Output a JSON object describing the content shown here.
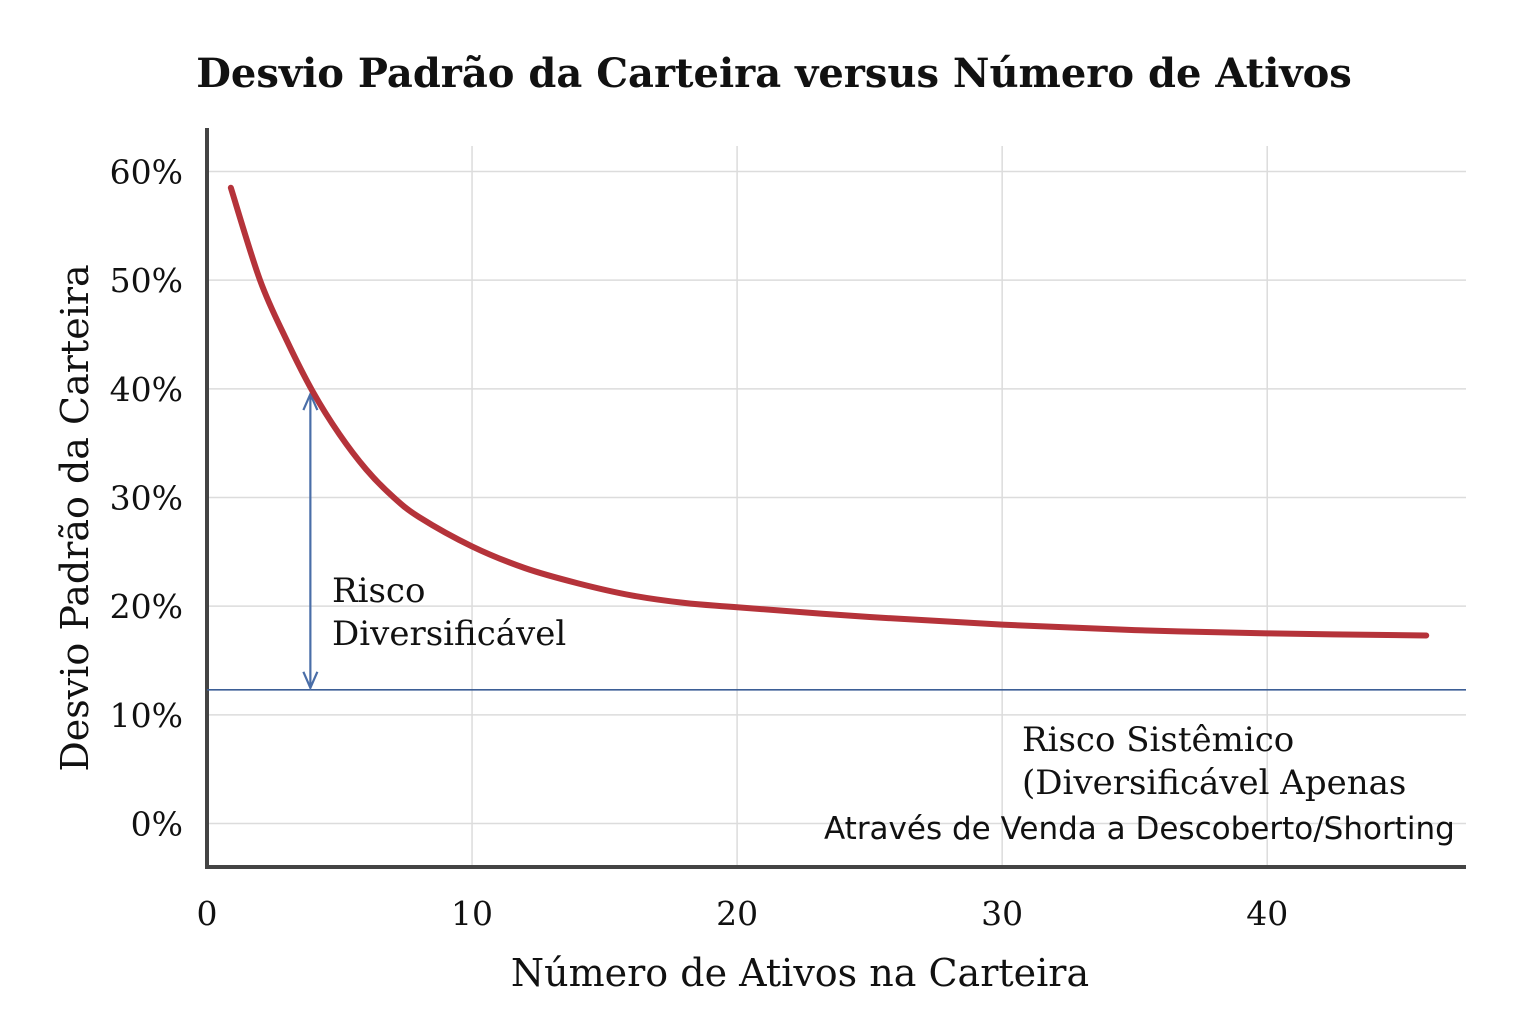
{
  "chart_data": {
    "type": "line",
    "title": "Desvio Padrão da Carteira versus Número de Ativos",
    "xlabel": "Número de Ativos na Carteira",
    "ylabel": "Desvio Padrão da Carteira",
    "xlim": [
      0,
      47.5
    ],
    "ylim": [
      -4,
      64
    ],
    "x_ticks": [
      0,
      10,
      20,
      30,
      40
    ],
    "x_tick_labels": [
      "0",
      "10",
      "20",
      "30",
      "40"
    ],
    "y_ticks": [
      0,
      10,
      20,
      30,
      40,
      50,
      60
    ],
    "y_tick_labels": [
      "0%",
      "10%",
      "20%",
      "30%",
      "40%",
      "50%",
      "60%"
    ],
    "grid": true,
    "series": [
      {
        "color": "#b5333a",
        "x": [
          0.9,
          2,
          3,
          4,
          5,
          6,
          7,
          8,
          10,
          12,
          14,
          16,
          18,
          20,
          25,
          30,
          35,
          40,
          46
        ],
        "y": [
          58.5,
          50,
          44.5,
          39.7,
          35.8,
          32.6,
          30.1,
          28.2,
          25.5,
          23.5,
          22.1,
          21.0,
          20.3,
          19.9,
          19.0,
          18.3,
          17.8,
          17.5,
          17.3
        ]
      }
    ],
    "systematic_risk_level": 12.3,
    "systematic_line_color": "#3d5f96",
    "arrow": {
      "x": 3.9,
      "y_from": 12.3,
      "y_to": 39.7,
      "color": "#4a6ea8"
    },
    "annotations": {
      "diversifiable": [
        "Risco",
        "Diversificável"
      ],
      "systematic": [
        "Risco Sistêmico",
        "(Diversificável Apenas"
      ],
      "shorting": "Através de Venda a Descoberto/Shorting"
    }
  }
}
